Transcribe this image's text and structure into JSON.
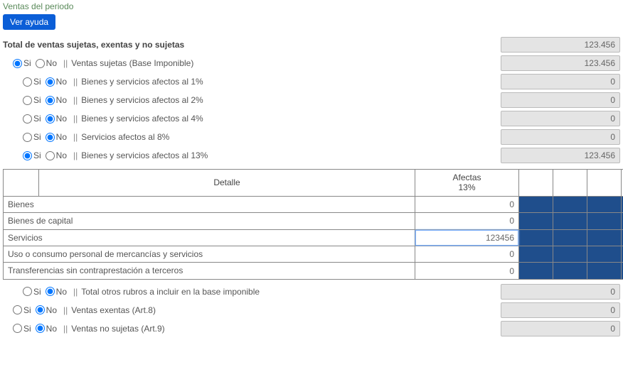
{
  "section_title": "Ventas del periodo",
  "help_button": "Ver ayuda",
  "yes_no": {
    "yes": "Si",
    "no": "No",
    "sep": "||"
  },
  "total_row": {
    "label": "Total de ventas sujetas, exentas y no sujetas",
    "value": "123.456"
  },
  "lines": [
    {
      "indent": 1,
      "si": true,
      "label": "Ventas sujetas (Base Imponible)",
      "value": "123.456"
    },
    {
      "indent": 2,
      "si": false,
      "label": "Bienes y servicios afectos al 1%",
      "value": "0"
    },
    {
      "indent": 2,
      "si": false,
      "label": "Bienes y servicios afectos al 2%",
      "value": "0"
    },
    {
      "indent": 2,
      "si": false,
      "label": "Bienes y servicios afectos al 4%",
      "value": "0"
    },
    {
      "indent": 2,
      "si": false,
      "label": "Servicios afectos al 8%",
      "value": "0"
    },
    {
      "indent": 2,
      "si": true,
      "label": "Bienes y servicios afectos al 13%",
      "value": "123.456"
    }
  ],
  "table": {
    "headers": {
      "detalle": "Detalle",
      "afectas": "Afectas\n13%"
    },
    "rows": [
      {
        "label": "Bienes",
        "value": "0",
        "focus": false
      },
      {
        "label": "Bienes de capital",
        "value": "0",
        "focus": false
      },
      {
        "label": "Servicios",
        "value": "123456",
        "focus": true
      },
      {
        "label": "Uso o consumo personal de mercancías y servicios",
        "value": "0",
        "focus": false
      },
      {
        "label": "Transferencias sin contraprestación a terceros",
        "value": "0",
        "focus": false
      }
    ],
    "blank_cols": 4
  },
  "after_lines": [
    {
      "indent": 2,
      "si": false,
      "label": "Total otros rubros a incluir en la base imponible",
      "value": "0"
    },
    {
      "indent": 1,
      "si": false,
      "label": "Ventas exentas (Art.8)",
      "value": "0"
    },
    {
      "indent": 1,
      "si": false,
      "label": "Ventas no sujetas (Art.9)",
      "value": "0"
    }
  ],
  "colors": {
    "help_bg": "#0b5ed7",
    "value_bg": "#e4e4e4",
    "blue_cell": "#1f4e8c",
    "title_color": "#5a8a5a"
  }
}
